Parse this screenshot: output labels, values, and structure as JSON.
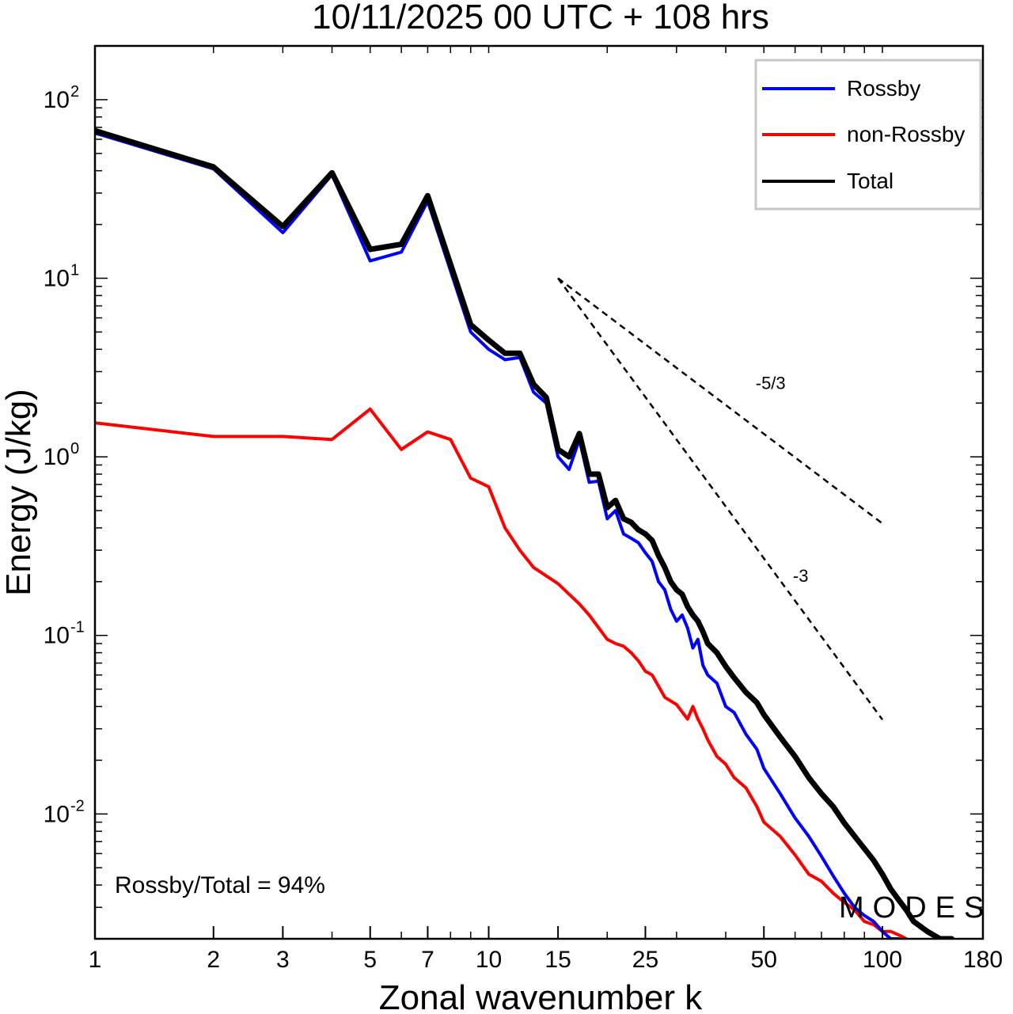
{
  "chart_data": {
    "type": "line",
    "title": "10/11/2025  00 UTC  + 108 hrs",
    "xlabel": "Zonal wavenumber k",
    "ylabel": "Energy (J/kg)",
    "xscale": "log",
    "yscale": "log",
    "xlim": [
      1,
      180
    ],
    "ylim": [
      0.002,
      200
    ],
    "xticks": [
      {
        "value": 1,
        "label": "1"
      },
      {
        "value": 2,
        "label": "2"
      },
      {
        "value": 3,
        "label": "3"
      },
      {
        "value": 5,
        "label": "5"
      },
      {
        "value": 7,
        "label": "7"
      },
      {
        "value": 10,
        "label": "10"
      },
      {
        "value": 15,
        "label": "15"
      },
      {
        "value": 25,
        "label": "25"
      },
      {
        "value": 50,
        "label": "50"
      },
      {
        "value": 100,
        "label": "100"
      },
      {
        "value": 180,
        "label": "180"
      }
    ],
    "yticks": [
      {
        "value": 100,
        "mantissa": "10",
        "exponent": "2"
      },
      {
        "value": 10,
        "mantissa": "10",
        "exponent": "1"
      },
      {
        "value": 1,
        "mantissa": "10",
        "exponent": "0"
      },
      {
        "value": 0.1,
        "mantissa": "10",
        "exponent": "-1"
      },
      {
        "value": 0.01,
        "mantissa": "10",
        "exponent": "-2"
      }
    ],
    "legend_position": "top-right",
    "series": [
      {
        "name": "Rossby",
        "color": "#0000ff",
        "x": [
          1,
          2,
          3,
          4,
          5,
          6,
          7,
          9,
          10,
          11,
          12,
          13,
          14,
          15,
          16,
          17,
          18,
          19,
          20,
          21,
          22,
          23,
          24,
          25,
          26,
          27,
          28,
          29,
          30,
          31,
          32,
          33,
          34,
          35,
          36,
          38,
          40,
          42,
          45,
          48,
          50,
          55,
          60,
          65,
          70,
          75,
          80,
          85,
          90,
          95,
          100,
          105,
          110
        ],
        "values": [
          65,
          41,
          18,
          38,
          12.5,
          14,
          27,
          5.0,
          4.0,
          3.5,
          3.6,
          2.3,
          2.0,
          1.0,
          0.85,
          1.25,
          0.72,
          0.73,
          0.45,
          0.5,
          0.37,
          0.35,
          0.33,
          0.29,
          0.26,
          0.2,
          0.18,
          0.14,
          0.12,
          0.13,
          0.11,
          0.085,
          0.095,
          0.068,
          0.06,
          0.054,
          0.04,
          0.037,
          0.028,
          0.023,
          0.018,
          0.013,
          0.0095,
          0.0075,
          0.0058,
          0.0045,
          0.0036,
          0.003,
          0.0027,
          0.0025,
          0.0022,
          0.002,
          0.002
        ]
      },
      {
        "name": "non-Rossby",
        "color": "#ff0000",
        "x": [
          1,
          2,
          3,
          4,
          5,
          6,
          7,
          8,
          9,
          10,
          11,
          12,
          13,
          15,
          16,
          17,
          18,
          20,
          21,
          22,
          23,
          24,
          25,
          26,
          27,
          28,
          30,
          32,
          33,
          34,
          35,
          36,
          38,
          40,
          42,
          45,
          48,
          50,
          55,
          60,
          65,
          70,
          75,
          80,
          85,
          90,
          95,
          100,
          105,
          110,
          115
        ],
        "values": [
          1.55,
          1.3,
          1.3,
          1.25,
          1.85,
          1.1,
          1.38,
          1.25,
          0.76,
          0.68,
          0.4,
          0.3,
          0.24,
          0.195,
          0.17,
          0.15,
          0.13,
          0.095,
          0.09,
          0.087,
          0.08,
          0.072,
          0.063,
          0.06,
          0.052,
          0.045,
          0.041,
          0.034,
          0.04,
          0.034,
          0.03,
          0.026,
          0.021,
          0.019,
          0.016,
          0.014,
          0.011,
          0.009,
          0.0075,
          0.0059,
          0.0046,
          0.0042,
          0.0036,
          0.0032,
          0.0029,
          0.0025,
          0.0024,
          0.0022,
          0.0022,
          0.0021,
          0.002
        ]
      },
      {
        "name": "Total",
        "color": "#000000",
        "x": [
          1,
          2,
          3,
          4,
          5,
          6,
          7,
          9,
          10,
          11,
          12,
          13,
          14,
          15,
          16,
          17,
          18,
          19,
          20,
          21,
          22,
          23,
          24,
          25,
          26,
          27,
          28,
          29,
          30,
          31,
          32,
          33,
          34,
          35,
          36,
          38,
          40,
          42,
          45,
          48,
          50,
          55,
          60,
          65,
          70,
          75,
          80,
          85,
          90,
          95,
          100,
          105,
          110,
          115,
          120,
          130,
          140,
          150
        ],
        "values": [
          67,
          42,
          19.5,
          39,
          14.5,
          15.5,
          29,
          5.5,
          4.5,
          3.8,
          3.8,
          2.55,
          2.15,
          1.1,
          1.0,
          1.35,
          0.8,
          0.8,
          0.52,
          0.57,
          0.45,
          0.43,
          0.39,
          0.37,
          0.34,
          0.28,
          0.24,
          0.2,
          0.18,
          0.17,
          0.145,
          0.13,
          0.12,
          0.105,
          0.09,
          0.08,
          0.067,
          0.058,
          0.048,
          0.042,
          0.036,
          0.027,
          0.021,
          0.016,
          0.013,
          0.011,
          0.0089,
          0.0075,
          0.0064,
          0.0055,
          0.0046,
          0.0038,
          0.0033,
          0.0029,
          0.0025,
          0.0022,
          0.002,
          0.002
        ]
      }
    ],
    "reference_lines": [
      {
        "label": "-5/3",
        "slope": -1.6667,
        "x": [
          15,
          100
        ],
        "y0": 10,
        "label_x": 52,
        "label_y": 2.4
      },
      {
        "label": "-3",
        "slope": -3,
        "x": [
          15,
          100
        ],
        "y0": 10,
        "label_x": 62,
        "label_y": 0.2
      }
    ],
    "annotations": {
      "ratio": "Rossby/Total = 94%",
      "watermark": "MODES"
    }
  }
}
